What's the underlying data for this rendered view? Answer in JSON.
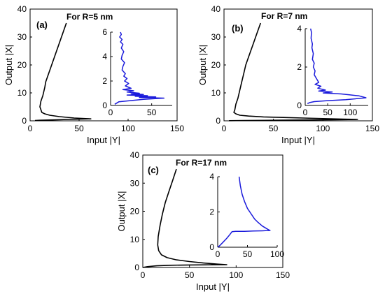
{
  "chart_data": [
    {
      "type": "line",
      "panel": "(a)",
      "title": "For R=5 nm",
      "xlabel": "Input |Y|",
      "ylabel": "Output |X|",
      "xlim": [
        0,
        150
      ],
      "ylim": [
        0,
        40
      ],
      "xticks": [
        0,
        50,
        100,
        150
      ],
      "yticks": [
        0,
        10,
        20,
        30,
        40
      ],
      "series": [
        {
          "x": [
            37,
            33,
            29,
            25,
            22,
            20,
            18,
            16,
            15,
            14,
            13,
            12,
            11,
            10.5,
            10,
            11,
            12,
            15,
            20,
            30,
            45,
            62,
            40,
            20,
            10,
            5
          ],
          "y": [
            35,
            31,
            27,
            23,
            20,
            18,
            16,
            14,
            12,
            10.5,
            9,
            8,
            7,
            6,
            5,
            4,
            3,
            2.5,
            2,
            1.5,
            1,
            0.7,
            0.5,
            0.3,
            0.2,
            0.1
          ]
        }
      ],
      "inset": {
        "xlim": [
          0,
          75
        ],
        "ylim": [
          0,
          6
        ],
        "xticks": [
          0,
          50
        ],
        "yticks": [
          0,
          2,
          4,
          6
        ],
        "series": [
          {
            "x": [
              12,
              13,
              11,
              14,
              12,
              15,
              13,
              16,
              14,
              13,
              17,
              15,
              14,
              18,
              16,
              20,
              17,
              22,
              18,
              25,
              15,
              28,
              20,
              35,
              25,
              40,
              20,
              45,
              30,
              55,
              35,
              65,
              40,
              25,
              10,
              5
            ],
            "y": [
              6.0,
              5.8,
              5.6,
              5.4,
              5.2,
              5.0,
              4.7,
              4.4,
              4.1,
              3.8,
              3.5,
              3.2,
              2.9,
              2.6,
              2.4,
              2.2,
              2.0,
              1.8,
              1.6,
              1.4,
              1.3,
              1.2,
              1.1,
              1.0,
              0.95,
              0.9,
              0.85,
              0.8,
              0.75,
              0.7,
              0.65,
              0.6,
              0.5,
              0.4,
              0.3,
              0.1
            ]
          }
        ]
      }
    },
    {
      "type": "line",
      "panel": "(b)",
      "title": "For R=7 nm",
      "xlabel": "Input |Y|",
      "ylabel": "Output |X|",
      "xlim": [
        0,
        150
      ],
      "ylim": [
        0,
        40
      ],
      "xticks": [
        0,
        50,
        100,
        150
      ],
      "yticks": [
        0,
        10,
        20,
        30,
        40
      ],
      "series": [
        {
          "x": [
            37,
            33,
            29,
            25,
            22,
            20,
            18,
            16,
            14,
            12,
            11,
            10,
            12,
            16,
            25,
            40,
            60,
            80,
            100,
            120,
            135,
            110,
            80,
            50,
            20,
            5
          ],
          "y": [
            35,
            31,
            27,
            23,
            20,
            17,
            14,
            11,
            8,
            6,
            4,
            3,
            2.5,
            2,
            1.7,
            1.4,
            1.2,
            1.0,
            0.8,
            0.6,
            0.5,
            0.4,
            0.3,
            0.2,
            0.1,
            0.05
          ]
        }
      ],
      "inset": {
        "xlim": [
          0,
          140
        ],
        "ylim": [
          0,
          4
        ],
        "xticks": [
          0,
          50,
          100
        ],
        "yticks": [
          0,
          2,
          4
        ],
        "series": [
          {
            "x": [
              12,
              14,
              13,
              16,
              15,
              18,
              16,
              20,
              18,
              22,
              20,
              25,
              30,
              22,
              35,
              28,
              45,
              30,
              60,
              40,
              80,
              100,
              120,
              135,
              90,
              50,
              20,
              10,
              5
            ],
            "y": [
              4.0,
              3.8,
              3.5,
              3.2,
              3.0,
              2.7,
              2.4,
              2.2,
              2.0,
              1.8,
              1.6,
              1.4,
              1.2,
              1.1,
              1.0,
              0.9,
              0.8,
              0.75,
              0.7,
              0.65,
              0.6,
              0.55,
              0.5,
              0.4,
              0.3,
              0.25,
              0.2,
              0.15,
              0.1
            ]
          }
        ]
      }
    },
    {
      "type": "line",
      "panel": "(c)",
      "title": "For R=17 nm",
      "xlabel": "Input |Y|",
      "ylabel": "Output |X|",
      "xlim": [
        0,
        150
      ],
      "ylim": [
        0,
        40
      ],
      "xticks": [
        0,
        50,
        100,
        150
      ],
      "yticks": [
        0,
        10,
        20,
        30,
        40
      ],
      "series": [
        {
          "x": [
            36,
            32,
            28,
            24,
            21,
            18.5,
            16.5,
            16,
            17,
            20,
            26,
            36,
            50,
            65,
            80,
            90,
            70,
            50,
            30,
            15,
            5,
            0
          ],
          "y": [
            35,
            31,
            27,
            23,
            19,
            15,
            11,
            8,
            6,
            4.5,
            3.5,
            2.7,
            2.1,
            1.6,
            1.2,
            1.0,
            0.95,
            0.9,
            0.8,
            0.6,
            0.3,
            0
          ]
        }
      ],
      "inset": {
        "xlim": [
          0,
          100
        ],
        "ylim": [
          0,
          4
        ],
        "xticks": [
          0,
          50,
          100
        ],
        "yticks": [
          0,
          2,
          4
        ],
        "series": [
          {
            "x": [
              36,
              38,
              41,
              45,
              50,
              56,
              62,
              68,
              75,
              80,
              85,
              88,
              75,
              60,
              45,
              30,
              24,
              20,
              15,
              8,
              3,
              0
            ],
            "y": [
              4.0,
              3.5,
              3.0,
              2.6,
              2.2,
              1.9,
              1.6,
              1.4,
              1.2,
              1.1,
              1.0,
              0.95,
              0.93,
              0.92,
              0.9,
              0.9,
              0.88,
              0.7,
              0.5,
              0.25,
              0.08,
              0
            ]
          }
        ]
      }
    }
  ]
}
